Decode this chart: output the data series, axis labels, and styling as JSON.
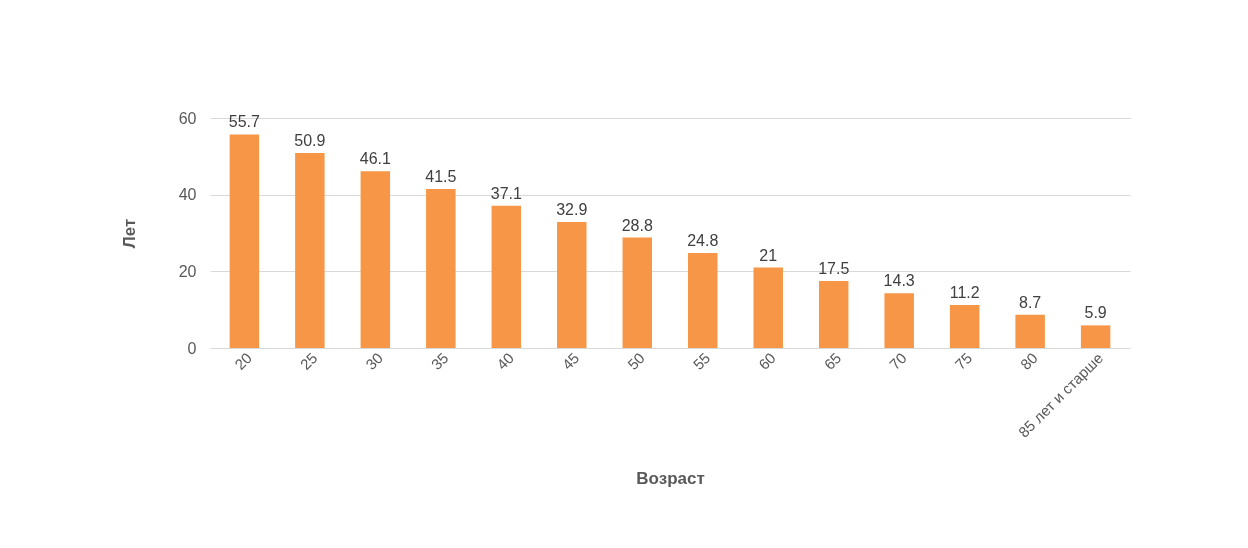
{
  "chart_data": {
    "type": "bar",
    "xlabel": "Возраст",
    "ylabel": "Лет",
    "categories": [
      "20",
      "25",
      "30",
      "35",
      "40",
      "45",
      "50",
      "55",
      "60",
      "65",
      "70",
      "75",
      "80",
      "85 лет и старше"
    ],
    "values": [
      55.7,
      50.9,
      46.1,
      41.5,
      37.1,
      32.9,
      28.8,
      24.8,
      21,
      17.5,
      14.3,
      11.2,
      8.7,
      5.9
    ],
    "color": "#f79646",
    "ylim": [
      0,
      60
    ],
    "yticks": [
      0,
      20,
      40,
      60
    ],
    "grid": "y",
    "data_labels": true
  }
}
